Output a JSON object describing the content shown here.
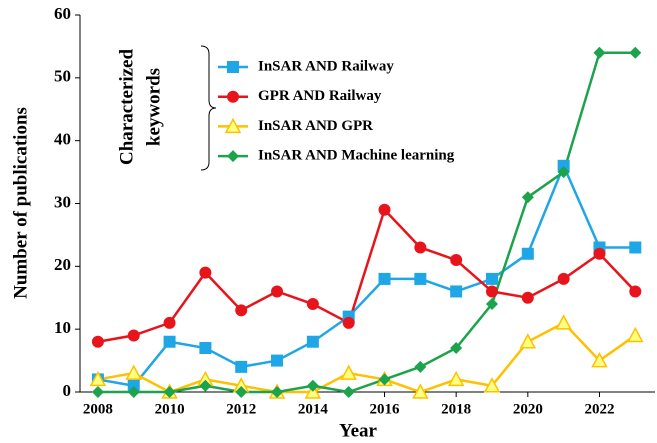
{
  "chart_data": {
    "type": "line",
    "x": [
      2008,
      2009,
      2010,
      2011,
      2012,
      2013,
      2014,
      2015,
      2016,
      2017,
      2018,
      2019,
      2020,
      2021,
      2022,
      2023
    ],
    "xlabel": "Year",
    "ylabel": "Number of publications",
    "xlim": [
      2007.5,
      2023.55
    ],
    "xticks": [
      2008,
      2010,
      2012,
      2014,
      2016,
      2018,
      2020,
      2022
    ],
    "ylim": [
      0,
      60
    ],
    "yticks": [
      0,
      10,
      20,
      30,
      40,
      50,
      60
    ],
    "legend_title": [
      "Characterized",
      "keywords"
    ],
    "series": [
      {
        "name": "InSAR AND Railway",
        "color": "#1ea6e6",
        "marker": "square",
        "values": [
          2,
          1,
          8,
          7,
          4,
          5,
          8,
          12,
          18,
          18,
          16,
          18,
          22,
          36,
          23,
          23
        ]
      },
      {
        "name": "GPR AND Railway",
        "color": "#e8141c",
        "marker": "circle",
        "values": [
          8,
          9,
          11,
          19,
          13,
          16,
          14,
          11,
          29,
          23,
          21,
          16,
          15,
          18,
          22,
          16
        ]
      },
      {
        "name": "InSAR AND GPR",
        "color": "#ffc000",
        "marker": "triangle",
        "values": [
          2,
          3,
          0,
          2,
          1,
          0,
          0,
          3,
          2,
          0,
          2,
          1,
          8,
          11,
          5,
          9
        ]
      },
      {
        "name": "InSAR AND Machine learning",
        "color": "#1ca34c",
        "marker": "diamond",
        "values": [
          0,
          0,
          0,
          1,
          0,
          0,
          1,
          0,
          2,
          4,
          7,
          14,
          31,
          35,
          54,
          54
        ]
      }
    ]
  }
}
